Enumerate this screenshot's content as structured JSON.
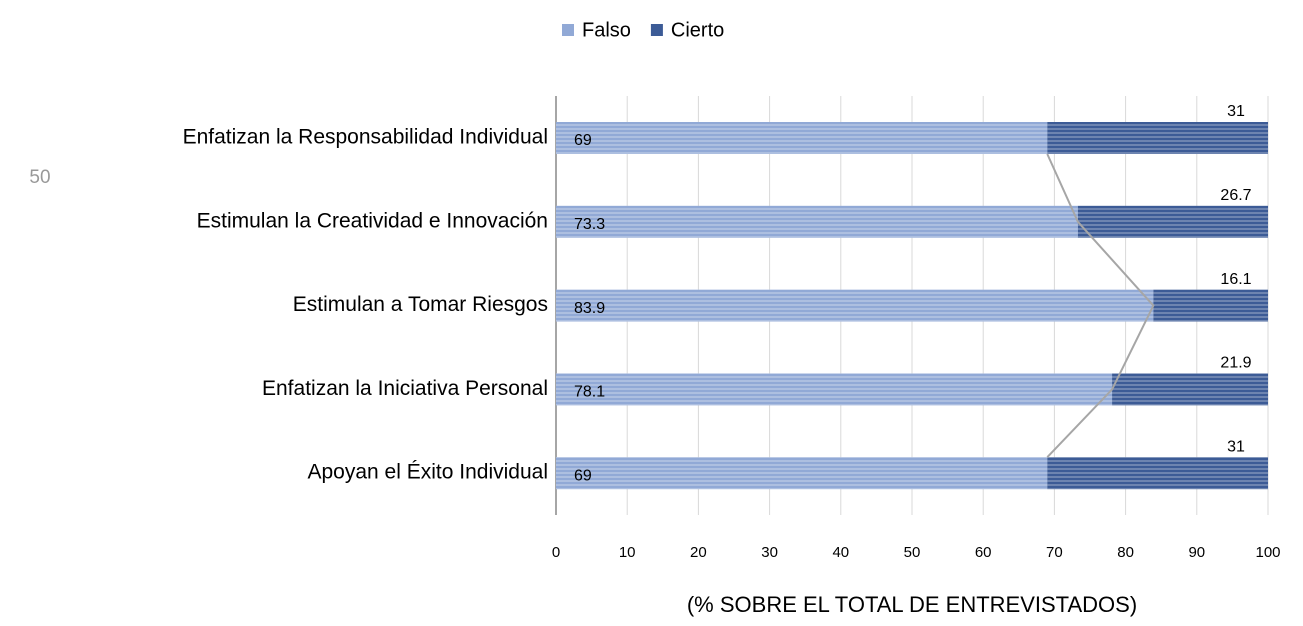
{
  "page_number": "50",
  "chart_data": {
    "type": "stacked-bar-horizontal",
    "x_label": "(% SOBRE EL TOTAL DE ENTREVISTADOS)",
    "categories": [
      "Enfatizan la Responsabilidad Individual",
      "Estimulan la Creatividad e Innovación",
      "Estimulan a Tomar Riesgos",
      "Enfatizan la Iniciativa Personal",
      "Apoyan el Éxito Individual"
    ],
    "series": [
      {
        "name": "Falso",
        "color": "#91a9d6",
        "values": [
          69,
          73.3,
          83.9,
          78.1,
          69
        ]
      },
      {
        "name": "Cierto",
        "color": "#3c5b96",
        "values": [
          31,
          26.7,
          16.1,
          21.9,
          31
        ]
      }
    ],
    "xlim": [
      0,
      100
    ],
    "xticks": [
      0,
      10,
      20,
      30,
      40,
      50,
      60,
      70,
      80,
      90,
      100
    ],
    "grid": true,
    "legend": "top"
  }
}
